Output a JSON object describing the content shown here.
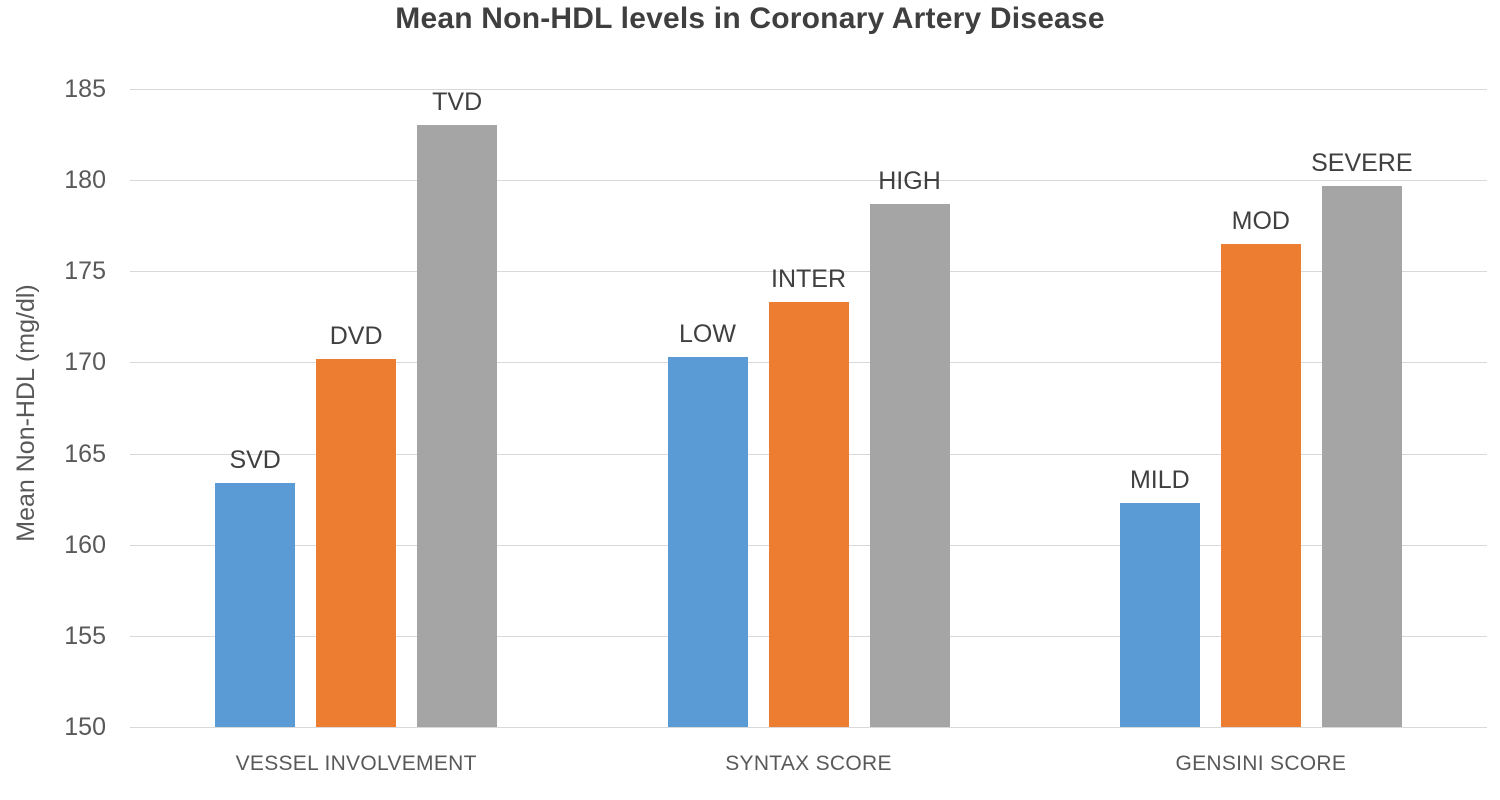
{
  "chart_data": {
    "type": "bar",
    "title": "Mean Non-HDL levels in Coronary Artery Disease",
    "xlabel": "",
    "ylabel": "Mean Non-HDL (mg/dl)",
    "ylim": [
      150,
      185
    ],
    "yticks": [
      185,
      180,
      175,
      170,
      165,
      160,
      155,
      150
    ],
    "grid": "horizontal",
    "legend_position": "none",
    "bar_label_position": "above-bar",
    "categories": [
      "VESSEL INVOLVEMENT",
      "SYNTAX SCORE",
      "GENSINI SCORE"
    ],
    "groups": [
      {
        "category": "VESSEL INVOLVEMENT",
        "bars": [
          {
            "label": "SVD",
            "value": 163.4,
            "color": "#5B9BD5"
          },
          {
            "label": "DVD",
            "value": 170.2,
            "color": "#ED7D31"
          },
          {
            "label": "TVD",
            "value": 183.0,
            "color": "#A5A5A5"
          }
        ]
      },
      {
        "category": "SYNTAX SCORE",
        "bars": [
          {
            "label": "LOW",
            "value": 170.3,
            "color": "#5B9BD5"
          },
          {
            "label": "INTER",
            "value": 173.3,
            "color": "#ED7D31"
          },
          {
            "label": "HIGH",
            "value": 178.7,
            "color": "#A5A5A5"
          }
        ]
      },
      {
        "category": "GENSINI SCORE",
        "bars": [
          {
            "label": "MILD",
            "value": 162.3,
            "color": "#5B9BD5"
          },
          {
            "label": "MOD",
            "value": 176.5,
            "color": "#ED7D31"
          },
          {
            "label": "SEVERE",
            "value": 179.7,
            "color": "#A5A5A5"
          }
        ]
      }
    ],
    "colors": {
      "series_blue": "#5B9BD5",
      "series_orange": "#ED7D31",
      "series_gray": "#A5A5A5",
      "gridline": "#d9d9d9",
      "title_text": "#3f3f3f",
      "axis_text": "#595959",
      "bar_label_text": "#404040"
    }
  }
}
